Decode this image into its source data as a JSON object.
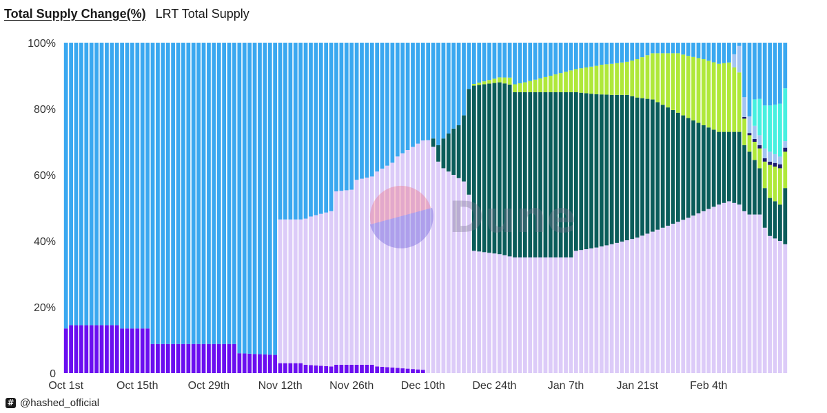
{
  "tabs": [
    {
      "label": "Total Supply Change(%)",
      "active": true
    },
    {
      "label": "LRT Total Supply",
      "active": false
    }
  ],
  "footer": {
    "icon": "hashtag-icon",
    "handle": "@hashed_official"
  },
  "watermark": {
    "text": "Dune"
  },
  "chart_data": {
    "type": "bar",
    "stacked": true,
    "percent_axis": true,
    "title": "",
    "xlabel": "",
    "ylabel": "",
    "ylim": [
      0,
      100
    ],
    "y_ticks": [
      "0",
      "20%",
      "40%",
      "60%",
      "80%",
      "100%"
    ],
    "x_tick_labels": [
      "Oct 1st",
      "Oct 15th",
      "Oct 29th",
      "Nov 12th",
      "Nov 26th",
      "Dec 10th",
      "Dec 24th",
      "Jan 7th",
      "Jan 21st",
      "Feb 4th"
    ],
    "x_tick_indices": [
      0,
      14,
      28,
      42,
      56,
      70,
      84,
      98,
      112,
      126
    ],
    "grid": false,
    "legend": "none",
    "series_colors": [
      "#6b0ef0",
      "#dccbf8",
      "#0a5c5a",
      "#afe83a",
      "#1c1a6e",
      "#a3c4f2",
      "#47f0e0",
      "#3aa8f0"
    ],
    "series": [
      {
        "color": "#6b0ef0",
        "knots": [
          [
            0,
            13.5
          ],
          [
            1,
            14.5
          ],
          [
            10,
            14.5
          ],
          [
            11,
            13.5
          ],
          [
            16,
            13.5
          ],
          [
            17,
            8.8
          ],
          [
            33,
            8.8
          ],
          [
            34,
            6
          ],
          [
            41,
            5.5
          ],
          [
            42,
            3
          ],
          [
            46,
            3
          ],
          [
            47,
            2.5
          ],
          [
            52,
            2
          ],
          [
            53,
            2.5
          ],
          [
            60,
            2.5
          ],
          [
            61,
            2
          ],
          [
            70,
            1
          ],
          [
            71,
            0
          ]
        ]
      },
      {
        "color": "#dccbf8",
        "knots": [
          [
            0,
            0
          ],
          [
            41,
            0
          ],
          [
            42,
            43.5
          ],
          [
            46,
            43.5
          ],
          [
            48,
            45
          ],
          [
            50,
            46
          ],
          [
            52,
            47
          ],
          [
            53,
            52.5
          ],
          [
            56,
            53
          ],
          [
            57,
            56
          ],
          [
            60,
            57
          ],
          [
            61,
            59
          ],
          [
            64,
            62
          ],
          [
            65,
            64
          ],
          [
            71,
            70.5
          ],
          [
            72,
            68.5
          ],
          [
            73,
            64
          ],
          [
            74,
            62
          ],
          [
            76,
            60
          ],
          [
            78,
            58
          ],
          [
            79,
            54
          ],
          [
            80,
            37
          ],
          [
            85,
            36
          ],
          [
            88,
            35
          ],
          [
            93,
            35
          ],
          [
            99,
            35
          ],
          [
            100,
            37
          ],
          [
            104,
            38
          ],
          [
            107,
            39
          ],
          [
            112,
            41
          ],
          [
            117,
            44
          ],
          [
            122,
            47
          ],
          [
            125,
            49
          ],
          [
            128,
            51
          ],
          [
            130,
            52
          ],
          [
            132,
            51
          ],
          [
            133,
            49
          ],
          [
            134,
            48
          ],
          [
            136,
            48
          ],
          [
            137,
            44
          ],
          [
            138,
            41.5
          ],
          [
            140,
            40
          ],
          [
            141,
            39
          ]
        ]
      },
      {
        "color": "#0a5c5a",
        "knots": [
          [
            0,
            0
          ],
          [
            71,
            0
          ],
          [
            73,
            5
          ],
          [
            74,
            9
          ],
          [
            76,
            14
          ],
          [
            77,
            16
          ],
          [
            78,
            20
          ],
          [
            79,
            32
          ],
          [
            80,
            50
          ],
          [
            85,
            52
          ],
          [
            87,
            52
          ],
          [
            88,
            50
          ],
          [
            99,
            50
          ],
          [
            100,
            48
          ],
          [
            105,
            46
          ],
          [
            110,
            44
          ],
          [
            115,
            40
          ],
          [
            120,
            33
          ],
          [
            125,
            26
          ],
          [
            128,
            22
          ],
          [
            130,
            21
          ],
          [
            132,
            22
          ],
          [
            133,
            20
          ],
          [
            134,
            19
          ],
          [
            136,
            14
          ],
          [
            137,
            12
          ],
          [
            138,
            11.5
          ],
          [
            140,
            11
          ],
          [
            141,
            17
          ]
        ]
      },
      {
        "color": "#afe83a",
        "knots": [
          [
            0,
            0
          ],
          [
            79,
            0
          ],
          [
            80,
            0.5
          ],
          [
            85,
            1.5
          ],
          [
            90,
            3
          ],
          [
            95,
            5
          ],
          [
            100,
            7
          ],
          [
            105,
            9
          ],
          [
            110,
            10
          ],
          [
            115,
            14
          ],
          [
            120,
            18
          ],
          [
            125,
            20
          ],
          [
            130,
            21
          ],
          [
            132,
            18
          ],
          [
            133,
            8
          ],
          [
            134,
            5
          ],
          [
            136,
            6
          ],
          [
            137,
            8
          ],
          [
            138,
            10
          ],
          [
            140,
            11
          ],
          [
            141,
            11
          ]
        ]
      },
      {
        "color": "#1c1a6e",
        "knots": [
          [
            0,
            0
          ],
          [
            132,
            0
          ],
          [
            133,
            0.5
          ],
          [
            136,
            1
          ],
          [
            138,
            1
          ],
          [
            140,
            1.2
          ],
          [
            141,
            1.2
          ]
        ]
      },
      {
        "color": "#a3c4f2",
        "knots": [
          [
            0,
            0
          ],
          [
            130,
            0
          ],
          [
            131,
            4
          ],
          [
            132,
            8
          ],
          [
            133,
            6
          ],
          [
            135,
            4
          ],
          [
            136,
            3
          ],
          [
            138,
            3
          ],
          [
            141,
            2
          ]
        ]
      },
      {
        "color": "#47f0e0",
        "knots": [
          [
            0,
            0
          ],
          [
            134,
            0
          ],
          [
            135,
            8
          ],
          [
            136,
            11
          ],
          [
            137,
            13
          ],
          [
            138,
            14
          ],
          [
            139,
            15
          ],
          [
            140,
            16
          ],
          [
            141,
            16
          ]
        ]
      }
    ],
    "remainder_series_color": "#3aa8f0",
    "bar_count": 142
  }
}
